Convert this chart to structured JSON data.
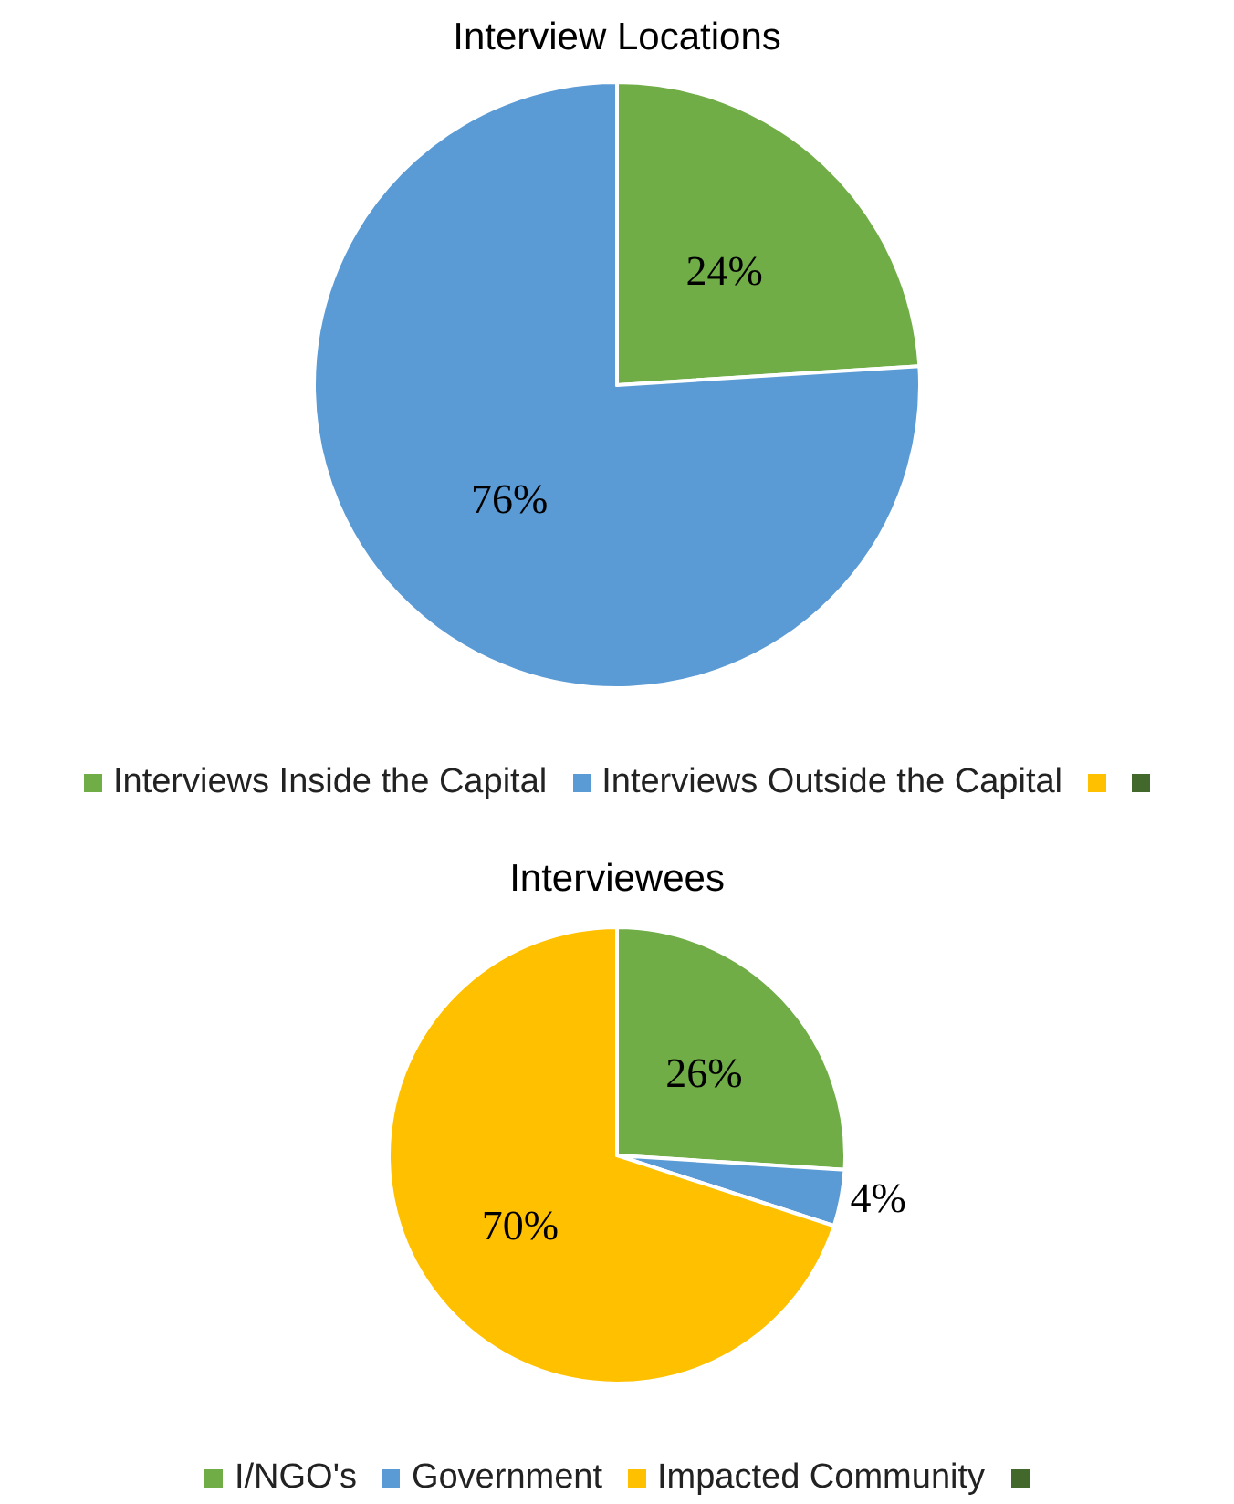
{
  "chart_data": [
    {
      "type": "pie",
      "title": "Interview Locations",
      "categories": [
        "Interviews Inside the Capital",
        "Interviews Outside the Capital",
        null,
        null
      ],
      "values": [
        24,
        76,
        0,
        0
      ],
      "value_labels": [
        "24%",
        "76%",
        null,
        null
      ],
      "colors": [
        "#70ad47",
        "#5b9bd5",
        "#ffc000",
        "#43682b"
      ],
      "legend": "bottom"
    },
    {
      "type": "pie",
      "title": "Interviewees",
      "categories": [
        "I/NGO's",
        "Government",
        "Impacted Community",
        null
      ],
      "values": [
        26,
        4,
        70,
        0
      ],
      "value_labels": [
        "26%",
        "4%",
        "70%",
        null
      ],
      "colors": [
        "#70ad47",
        "#5b9bd5",
        "#ffc000",
        "#43682b"
      ],
      "legend": "bottom"
    }
  ]
}
